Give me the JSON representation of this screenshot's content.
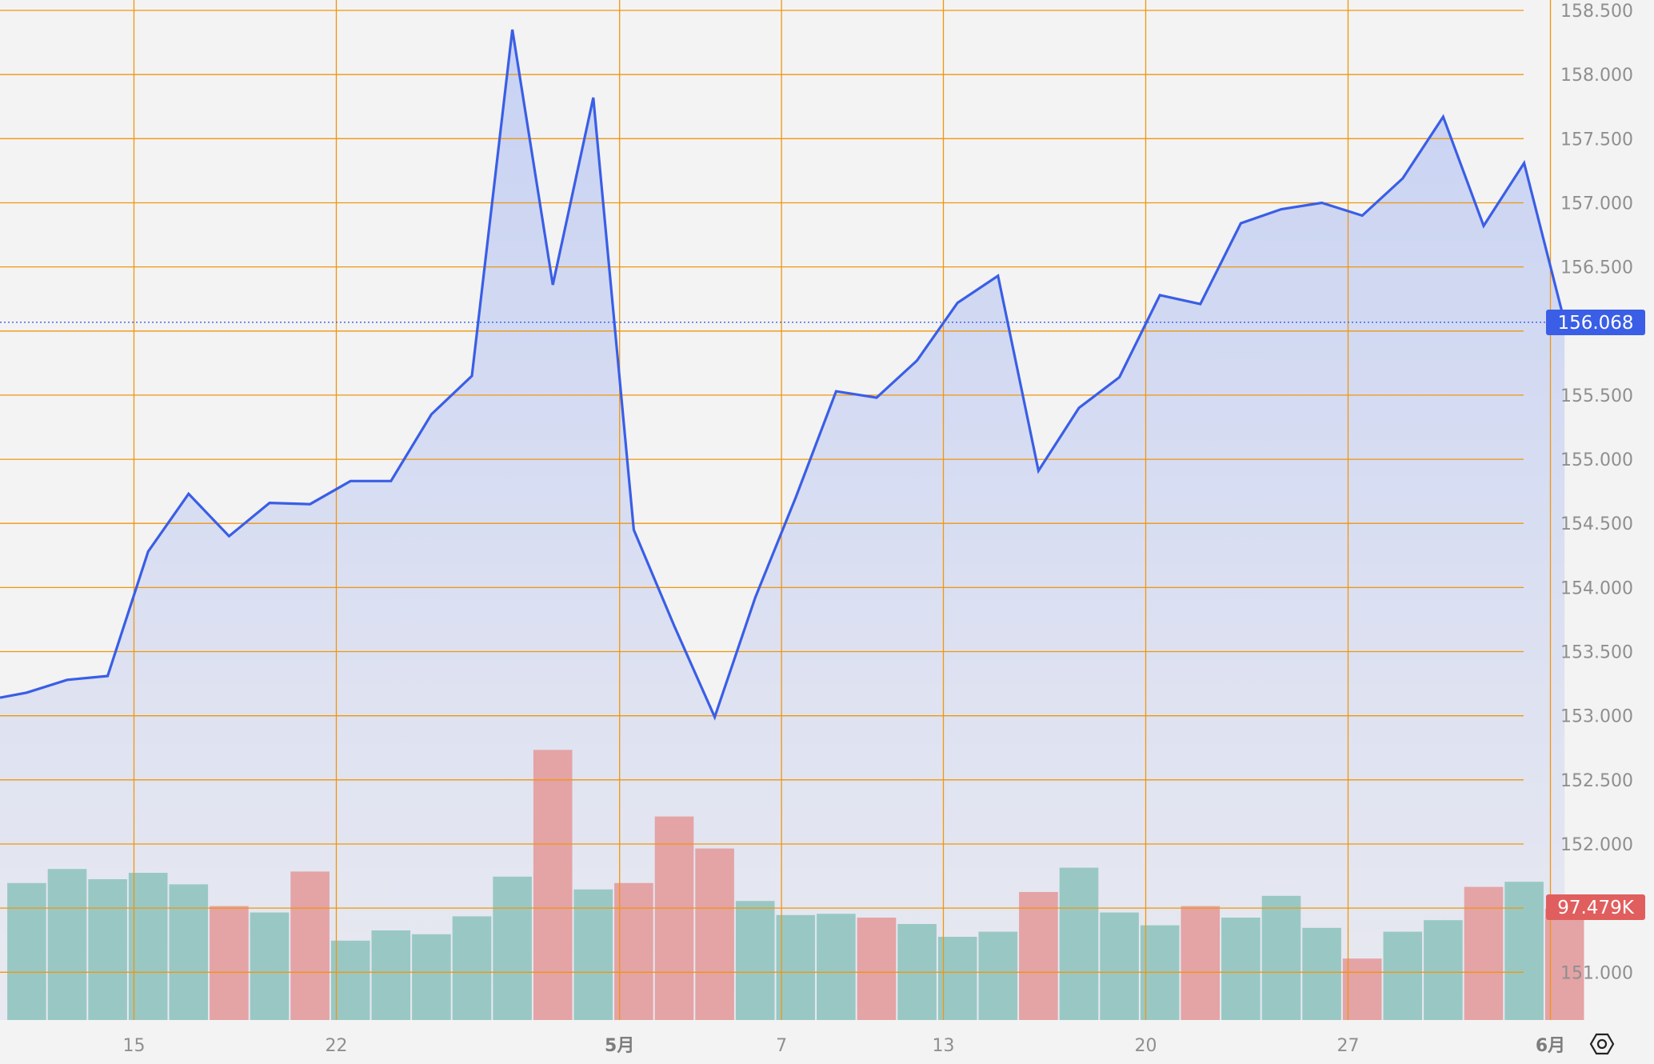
{
  "chart_data": {
    "type": "area",
    "y_axis": {
      "ylim": [
        150.6,
        158.56
      ],
      "tick_labels": [
        "158.500",
        "158.000",
        "157.500",
        "157.000",
        "156.500",
        "155.500",
        "155.000",
        "154.500",
        "154.000",
        "153.500",
        "153.000",
        "152.500",
        "152.000",
        "151.000"
      ],
      "tick_values": [
        158.5,
        158.0,
        157.5,
        157.0,
        156.5,
        155.5,
        155.0,
        154.5,
        154.0,
        153.5,
        153.0,
        152.5,
        152.0,
        151.0
      ],
      "gridline_values": [
        158.5,
        158.0,
        157.5,
        157.0,
        156.5,
        156.0,
        155.5,
        155.0,
        154.5,
        154.0,
        153.5,
        153.0,
        152.5,
        152.0,
        151.5,
        151.0
      ]
    },
    "x_axis": {
      "tick_labels": [
        "15",
        "22",
        "5月",
        "7",
        "13",
        "20",
        "27",
        "6月"
      ],
      "tick_index": [
        2.65,
        7.65,
        14.65,
        18.65,
        22.65,
        27.65,
        32.65,
        37.65
      ],
      "bold_ticks": [
        "5月",
        "6月"
      ]
    },
    "series": [
      {
        "values": [
          153.18,
          153.28,
          153.31,
          154.28,
          154.73,
          154.4,
          154.66,
          154.65,
          154.83,
          154.83,
          155.35,
          155.65,
          158.35,
          156.36,
          157.82,
          154.45,
          153.7,
          152.99,
          153.92,
          154.7,
          155.53,
          155.48,
          155.77,
          156.22,
          156.43,
          154.91,
          155.4,
          155.64,
          156.28,
          156.21,
          156.84,
          156.95,
          157.0,
          156.9,
          157.19,
          157.67,
          156.82,
          157.31,
          156.07
        ]
      }
    ],
    "volume": {
      "values": [
        1.07,
        1.18,
        1.1,
        1.15,
        1.06,
        0.89,
        0.84,
        1.16,
        0.62,
        0.7,
        0.67,
        0.81,
        1.12,
        2.11,
        1.02,
        1.07,
        1.59,
        1.34,
        0.93,
        0.82,
        0.83,
        0.8,
        0.75,
        0.65,
        0.69,
        1.0,
        1.19,
        0.84,
        0.74,
        0.89,
        0.8,
        0.97,
        0.72,
        0.48,
        0.69,
        0.78,
        1.04,
        1.08,
        0.87
      ],
      "direction": [
        "up",
        "up",
        "up",
        "up",
        "up",
        "down",
        "up",
        "down",
        "up",
        "up",
        "up",
        "up",
        "up",
        "down",
        "up",
        "down",
        "down",
        "down",
        "up",
        "up",
        "up",
        "down",
        "up",
        "up",
        "up",
        "down",
        "up",
        "up",
        "up",
        "down",
        "up",
        "up",
        "up",
        "down",
        "up",
        "up",
        "down",
        "up",
        "down"
      ]
    },
    "last_price": 156.068,
    "last_price_label": "156.068",
    "last_volume_label": "97.479K",
    "colors": {
      "line": "#3a5ee6",
      "area": "#c9d3f2",
      "grid": "#f0960f",
      "up_volume": "#99c8c4",
      "down_volume": "#e4a3a5",
      "price_badge": "#3a5ee6",
      "volume_badge": "#e15e5e"
    }
  },
  "settings_icon": "settings-hexagon-icon"
}
